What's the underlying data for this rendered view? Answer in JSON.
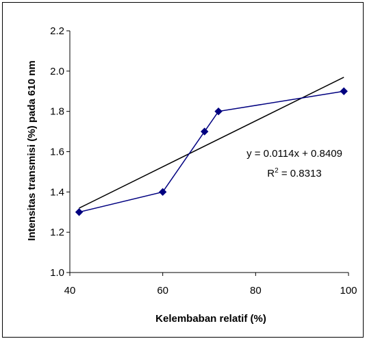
{
  "chart_data": {
    "type": "scatter",
    "title": "",
    "xlabel": "Kelembaban relatif (%)",
    "ylabel": "Intensitas transmisi (%) pada 610 nm",
    "xlim": [
      40,
      100
    ],
    "ylim": [
      1.0,
      2.2
    ],
    "xticks": [
      "40",
      "60",
      "80",
      "100"
    ],
    "yticks": [
      "1.0",
      "1.2",
      "1.4",
      "1.6",
      "1.8",
      "2.0",
      "2.2"
    ],
    "grid": false,
    "legend": "none",
    "series": [
      {
        "color": "#000080",
        "marker": "diamond",
        "line": "solid",
        "x": [
          42,
          60,
          69,
          72,
          99
        ],
        "y": [
          1.3,
          1.4,
          1.7,
          1.8,
          1.9
        ]
      }
    ],
    "trendline": {
      "type": "linear",
      "slope": 0.0114,
      "intercept": 0.8409,
      "x_range": [
        42,
        99
      ],
      "color": "#000000"
    },
    "annotations": {
      "equation": "y = 0.0114x + 0.8409",
      "r_squared_prefix": "R",
      "r_squared_exponent": "2",
      "r_squared_value": " = 0.8313"
    }
  }
}
